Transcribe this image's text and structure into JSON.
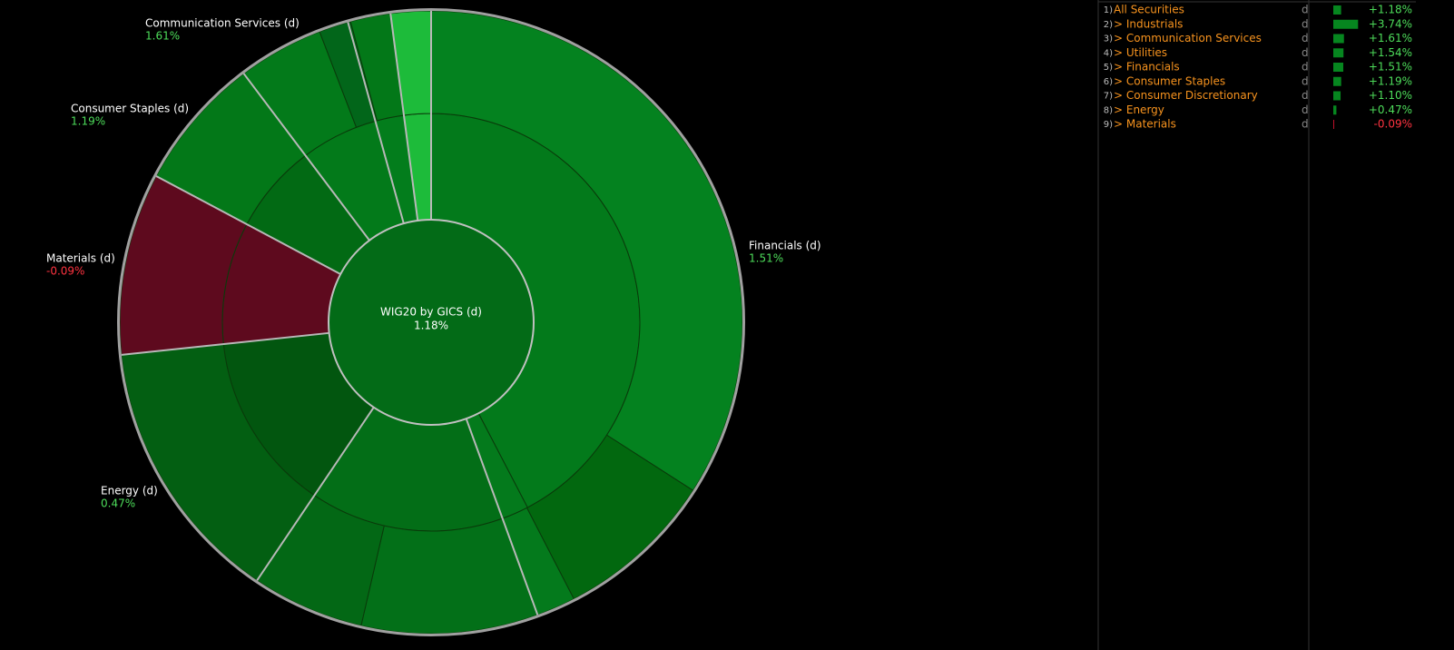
{
  "chart": {
    "title": "WIG20 by GICS (d)",
    "value": "1.18%",
    "labels": [
      {
        "name": "Communication Services (d)",
        "value": "1.61%"
      },
      {
        "name": "Consumer Staples (d)",
        "value": "1.19%"
      },
      {
        "name": "Materials (d)",
        "value": "-0.09%"
      },
      {
        "name": "Energy (d)",
        "value": "0.47%"
      },
      {
        "name": "Financials (d)",
        "value": "1.51%"
      }
    ]
  },
  "table": {
    "rows": [
      {
        "index": "1)",
        "name": "All Securities",
        "period": "d",
        "change": "+1.18%"
      },
      {
        "index": "2)",
        "name": "> Industrials",
        "period": "d",
        "change": "+3.74%"
      },
      {
        "index": "3)",
        "name": "> Communication Services",
        "period": "d",
        "change": "+1.61%"
      },
      {
        "index": "4)",
        "name": "> Utilities",
        "period": "d",
        "change": "+1.54%"
      },
      {
        "index": "5)",
        "name": "> Financials",
        "period": "d",
        "change": "+1.51%"
      },
      {
        "index": "6)",
        "name": "> Consumer Staples",
        "period": "d",
        "change": "+1.19%"
      },
      {
        "index": "7)",
        "name": "> Consumer Discretionary",
        "period": "d",
        "change": "+1.10%"
      },
      {
        "index": "8)",
        "name": "> Energy",
        "period": "d",
        "change": "+0.47%"
      },
      {
        "index": "9)",
        "name": "> Materials",
        "period": "d",
        "change": "-0.09%"
      }
    ]
  }
}
